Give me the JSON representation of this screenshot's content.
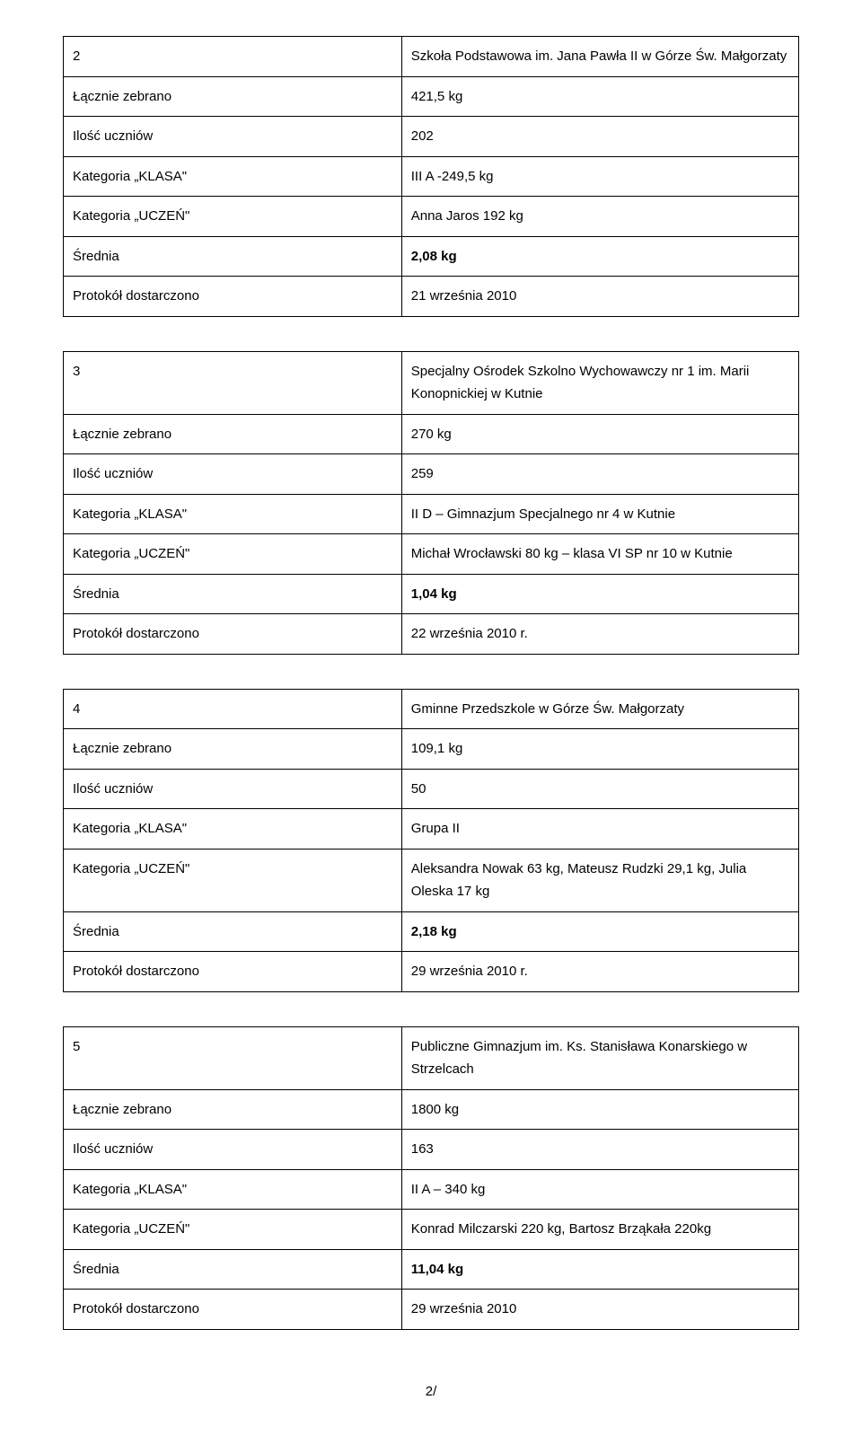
{
  "tables": {
    "t1": {
      "num": "2",
      "title": "Szkoła Podstawowa im. Jana Pawła II w Górze Św. Małgorzaty",
      "rows": {
        "collected_label": "Łącznie zebrano",
        "collected_value": "421,5 kg",
        "students_label": "Ilość uczniów",
        "students_value": "202",
        "class_label": "Kategoria „KLASA\"",
        "class_value": "III A -249,5 kg",
        "student_label": "Kategoria „UCZEŃ\"",
        "student_value": "Anna Jaros 192 kg",
        "avg_label": "Średnia",
        "avg_value": "2,08 kg",
        "protocol_label": "Protokół dostarczono",
        "protocol_value": "21 września 2010"
      }
    },
    "t2": {
      "num": "3",
      "title": "Specjalny Ośrodek Szkolno Wychowawczy nr 1 im. Marii Konopnickiej w Kutnie",
      "rows": {
        "collected_label": "Łącznie zebrano",
        "collected_value": "270 kg",
        "students_label": "Ilość uczniów",
        "students_value": "259",
        "class_label": "Kategoria „KLASA\"",
        "class_value": "II D – Gimnazjum Specjalnego nr 4 w Kutnie",
        "student_label": "Kategoria „UCZEŃ\"",
        "student_value": "Michał Wrocławski 80 kg – klasa VI SP nr 10 w Kutnie",
        "avg_label": "Średnia",
        "avg_value": "1,04 kg",
        "protocol_label": "Protokół dostarczono",
        "protocol_value": "22 września 2010 r."
      }
    },
    "t3": {
      "num": "4",
      "title": "Gminne Przedszkole w Górze Św. Małgorzaty",
      "rows": {
        "collected_label": "Łącznie zebrano",
        "collected_value": "109,1 kg",
        "students_label": "Ilość uczniów",
        "students_value": "50",
        "class_label": "Kategoria „KLASA\"",
        "class_value": "Grupa II",
        "student_label": "Kategoria „UCZEŃ\"",
        "student_value": "Aleksandra Nowak 63 kg, Mateusz Rudzki 29,1 kg, Julia Oleska 17 kg",
        "avg_label": "Średnia",
        "avg_value": "2,18 kg",
        "protocol_label": "Protokół dostarczono",
        "protocol_value": "29 września 2010 r."
      }
    },
    "t4": {
      "num": "5",
      "title": "Publiczne Gimnazjum im. Ks. Stanisława Konarskiego w Strzelcach",
      "rows": {
        "collected_label": "Łącznie zebrano",
        "collected_value": "1800 kg",
        "students_label": "Ilość uczniów",
        "students_value": "163",
        "class_label": "Kategoria „KLASA\"",
        "class_value": "II A – 340 kg",
        "student_label": "Kategoria „UCZEŃ\"",
        "student_value": "Konrad Milczarski 220 kg, Bartosz Brząkała 220kg",
        "avg_label": "Średnia",
        "avg_value": "11,04 kg",
        "protocol_label": "Protokół dostarczono",
        "protocol_value": "29 września 2010"
      }
    }
  },
  "page_number": "2/"
}
